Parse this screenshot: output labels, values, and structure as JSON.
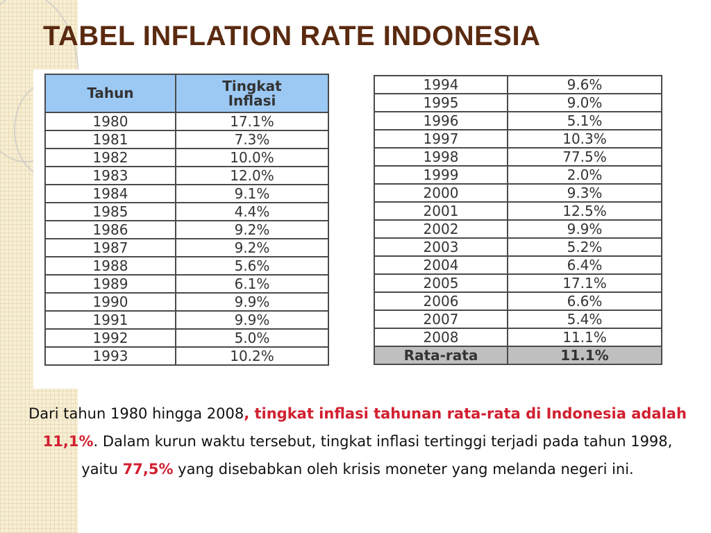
{
  "slide": {
    "title": "TABEL INFLATION RATE INDONESIA",
    "accent_color": "#5a2a10",
    "highlight_color": "#d11f2f",
    "header_color": "#9cc8f4"
  },
  "table_left": {
    "header_year": "Tahun",
    "header_rate_line1": "Tingkat",
    "header_rate_line2": "Inflasi",
    "rows": [
      {
        "year": "1980",
        "rate": "17.1%"
      },
      {
        "year": "1981",
        "rate": "7.3%"
      },
      {
        "year": "1982",
        "rate": "10.0%"
      },
      {
        "year": "1983",
        "rate": "12.0%"
      },
      {
        "year": "1984",
        "rate": "9.1%"
      },
      {
        "year": "1985",
        "rate": "4.4%"
      },
      {
        "year": "1986",
        "rate": "9.2%"
      },
      {
        "year": "1987",
        "rate": "9.2%"
      },
      {
        "year": "1988",
        "rate": "5.6%"
      },
      {
        "year": "1989",
        "rate": "6.1%"
      },
      {
        "year": "1990",
        "rate": "9.9%"
      },
      {
        "year": "1991",
        "rate": "9.9%"
      },
      {
        "year": "1992",
        "rate": "5.0%"
      },
      {
        "year": "1993",
        "rate": "10.2%"
      }
    ]
  },
  "table_right": {
    "rows": [
      {
        "year": "1994",
        "rate": "9.6%"
      },
      {
        "year": "1995",
        "rate": "9.0%"
      },
      {
        "year": "1996",
        "rate": "5.1%"
      },
      {
        "year": "1997",
        "rate": "10.3%"
      },
      {
        "year": "1998",
        "rate": "77.5%"
      },
      {
        "year": "1999",
        "rate": "2.0%"
      },
      {
        "year": "2000",
        "rate": "9.3%"
      },
      {
        "year": "2001",
        "rate": "12.5%"
      },
      {
        "year": "2002",
        "rate": "9.9%"
      },
      {
        "year": "2003",
        "rate": "5.2%"
      },
      {
        "year": "2004",
        "rate": "6.4%"
      },
      {
        "year": "2005",
        "rate": "17.1%"
      },
      {
        "year": "2006",
        "rate": "6.6%"
      },
      {
        "year": "2007",
        "rate": "5.4%"
      },
      {
        "year": "2008",
        "rate": "11.1%"
      }
    ],
    "average_label": "Rata-rata",
    "average_value": "11.1%"
  },
  "summary": {
    "part1": "Dari tahun 1980 hingga 2008",
    "part2": ", tingkat inflasi tahunan rata-rata di Indonesia adalah 11,1%",
    "part3": ". Dalam kurun waktu tersebut, tingkat inflasi tertinggi terjadi pada tahun 1998, yaitu ",
    "part4": "77,5%",
    "part5": " yang disebabkan oleh krisis moneter yang melanda negeri ini."
  }
}
